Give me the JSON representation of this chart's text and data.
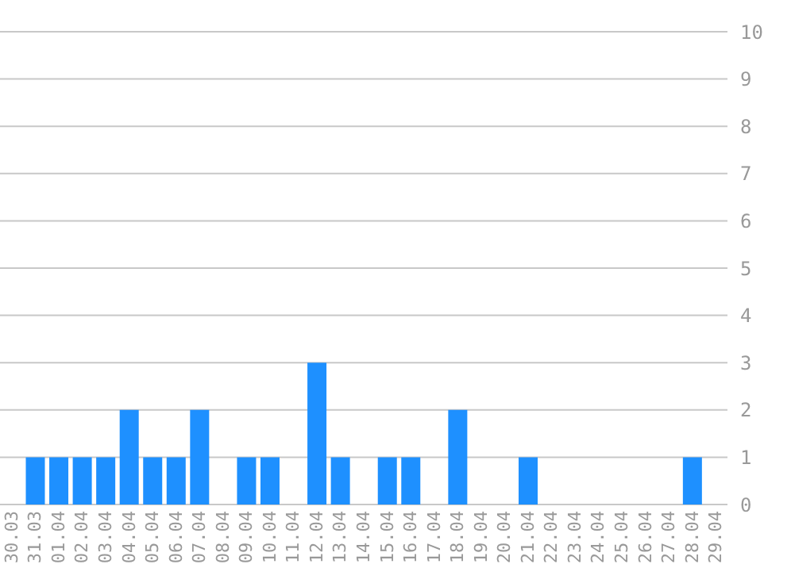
{
  "chart_data": {
    "type": "bar",
    "categories": [
      "30.03",
      "31.03",
      "01.04",
      "02.04",
      "03.04",
      "04.04",
      "05.04",
      "06.04",
      "07.04",
      "08.04",
      "09.04",
      "10.04",
      "11.04",
      "12.04",
      "13.04",
      "14.04",
      "15.04",
      "16.04",
      "17.04",
      "18.04",
      "19.04",
      "20.04",
      "21.04",
      "22.04",
      "23.04",
      "24.04",
      "25.04",
      "26.04",
      "27.04",
      "28.04",
      "29.04"
    ],
    "values": [
      0,
      1,
      1,
      1,
      1,
      2,
      1,
      1,
      2,
      0,
      1,
      1,
      0,
      3,
      1,
      0,
      1,
      1,
      0,
      2,
      0,
      0,
      1,
      0,
      0,
      0,
      0,
      0,
      0,
      1,
      0
    ],
    "color": "#1e90ff",
    "ylim": [
      0,
      10
    ],
    "yticks": [
      0,
      1,
      2,
      3,
      4,
      5,
      6,
      7,
      8,
      9,
      10
    ],
    "grid": "y"
  }
}
